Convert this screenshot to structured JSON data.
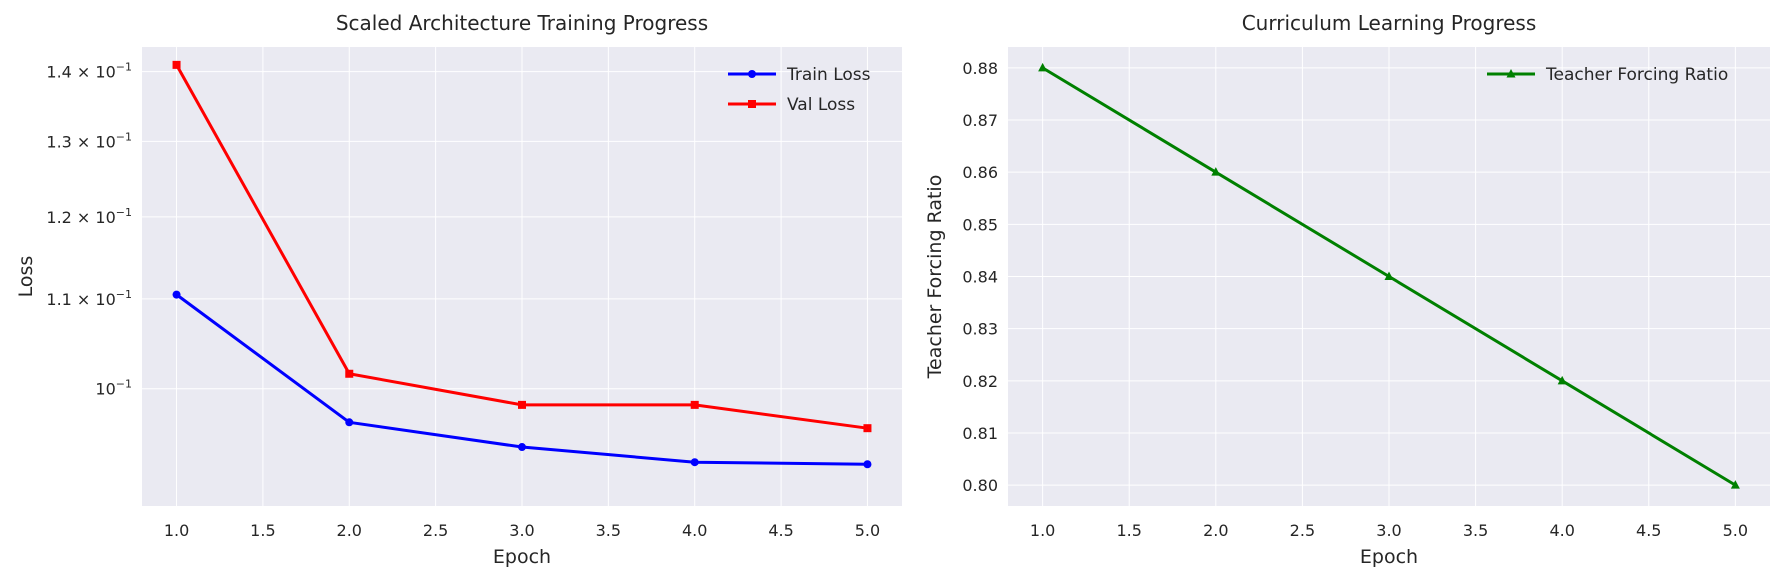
{
  "charts": [
    {
      "type": "line",
      "title": "Scaled Architecture Training Progress",
      "xlabel": "Epoch",
      "ylabel": "Loss",
      "xlim": [
        0.8,
        5.2
      ],
      "ylim": [
        0.0883,
        0.1437
      ],
      "y_scale": "log",
      "x_ticks": [
        1.0,
        1.5,
        2.0,
        2.5,
        3.0,
        3.5,
        4.0,
        4.5,
        5.0
      ],
      "x_tick_labels": [
        "1.0",
        "1.5",
        "2.0",
        "2.5",
        "3.0",
        "3.5",
        "4.0",
        "4.5",
        "5.0"
      ],
      "y_ticks": [
        0.1,
        0.11,
        0.12,
        0.13,
        0.14
      ],
      "y_tick_labels": [
        {
          "mant": "",
          "base": "10",
          "exp": "−1"
        },
        {
          "mant": "1.1 × ",
          "base": "10",
          "exp": "−1"
        },
        {
          "mant": "1.2 × ",
          "base": "10",
          "exp": "−1"
        },
        {
          "mant": "1.3 × ",
          "base": "10",
          "exp": "−1"
        },
        {
          "mant": "1.4 × ",
          "base": "10",
          "exp": "−1"
        }
      ],
      "grid": true,
      "legend_position": "top-right",
      "series": [
        {
          "name": "Train Loss",
          "color": "#0000ff",
          "marker": "circle",
          "x": [
            1,
            2,
            3,
            4,
            5
          ],
          "y": [
            0.1105,
            0.0965,
            0.094,
            0.0925,
            0.0923
          ]
        },
        {
          "name": "Val Loss",
          "color": "#ff0000",
          "marker": "square",
          "x": [
            1,
            2,
            3,
            4,
            5
          ],
          "y": [
            0.141,
            0.1016,
            0.0983,
            0.0983,
            0.0959
          ]
        }
      ]
    },
    {
      "type": "line",
      "title": "Curriculum Learning Progress",
      "xlabel": "Epoch",
      "ylabel": "Teacher Forcing Ratio",
      "xlim": [
        0.8,
        5.2
      ],
      "ylim": [
        0.796,
        0.884
      ],
      "y_scale": "linear",
      "x_ticks": [
        1.0,
        1.5,
        2.0,
        2.5,
        3.0,
        3.5,
        4.0,
        4.5,
        5.0
      ],
      "x_tick_labels": [
        "1.0",
        "1.5",
        "2.0",
        "2.5",
        "3.0",
        "3.5",
        "4.0",
        "4.5",
        "5.0"
      ],
      "y_ticks": [
        0.8,
        0.81,
        0.82,
        0.83,
        0.84,
        0.85,
        0.86,
        0.87,
        0.88
      ],
      "y_tick_labels": [
        "0.80",
        "0.81",
        "0.82",
        "0.83",
        "0.84",
        "0.85",
        "0.86",
        "0.87",
        "0.88"
      ],
      "grid": true,
      "legend_position": "top-right",
      "series": [
        {
          "name": "Teacher Forcing Ratio",
          "color": "#008000",
          "marker": "triangle",
          "x": [
            1,
            2,
            3,
            4,
            5
          ],
          "y": [
            0.88,
            0.86,
            0.84,
            0.82,
            0.8
          ]
        }
      ]
    }
  ],
  "style": {
    "plot_bg": "#eaeaf2",
    "grid_color": "#ffffff",
    "text_color": "#262626"
  }
}
